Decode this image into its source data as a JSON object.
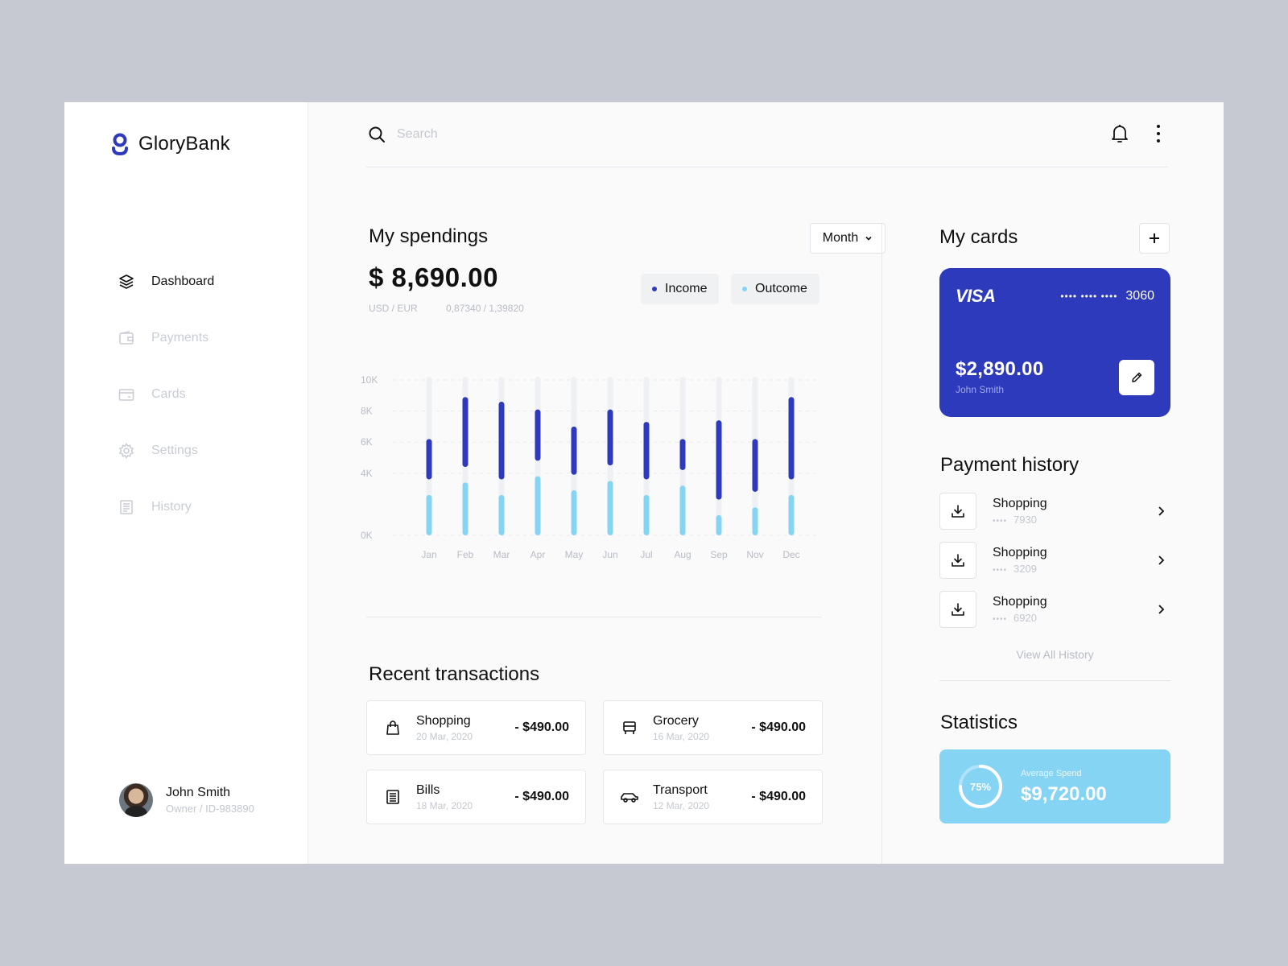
{
  "brand": {
    "name": "GloryBank"
  },
  "colors": {
    "primary": "#2d3abb",
    "accent": "#86d4f4",
    "muted": "#c9ccd4",
    "track": "#eef0f3"
  },
  "sidebar": {
    "items": [
      {
        "label": "Dashboard",
        "icon": "layers-icon",
        "active": true
      },
      {
        "label": "Payments",
        "icon": "wallet-icon",
        "active": false
      },
      {
        "label": "Cards",
        "icon": "card-icon",
        "active": false
      },
      {
        "label": "Settings",
        "icon": "gear-icon",
        "active": false
      },
      {
        "label": "History",
        "icon": "receipt-icon",
        "active": false
      }
    ]
  },
  "user": {
    "name": "John Smith",
    "id": "Owner / ID-983890"
  },
  "search": {
    "placeholder": "Search"
  },
  "spendings": {
    "title": "My spendings",
    "period": "Month",
    "amount": "$ 8,690.00",
    "rate_label": "USD / EUR",
    "rate_value": "0,87340 / 1,39820",
    "legend_income": "Income",
    "legend_outcome": "Outcome"
  },
  "chart_data": {
    "type": "bar",
    "stacked": true,
    "categories": [
      "Jan",
      "Feb",
      "Mar",
      "Apr",
      "May",
      "Jun",
      "Jul",
      "Aug",
      "Sep",
      "Nov",
      "Dec"
    ],
    "y_ticks": [
      "0K",
      "4K",
      "6K",
      "8K",
      "10K"
    ],
    "series": [
      {
        "name": "Outcome",
        "color": "#86d4f4",
        "values": [
          2.6,
          3.4,
          2.6,
          3.8,
          2.9,
          3.5,
          2.6,
          3.2,
          1.3,
          1.8,
          2.6
        ]
      },
      {
        "name": "Income",
        "color": "#2d3abb",
        "values": [
          2.6,
          4.5,
          5.0,
          3.3,
          3.1,
          3.6,
          3.7,
          2.0,
          5.1,
          3.4,
          5.3
        ]
      }
    ],
    "track_max": 10.2,
    "grid": true
  },
  "recent": {
    "title": "Recent transactions",
    "items": [
      {
        "name": "Shopping",
        "date": "20 Mar, 2020",
        "amount": "- $490.00",
        "icon": "shopping-bag-icon"
      },
      {
        "name": "Grocery",
        "date": "16 Mar, 2020",
        "amount": "- $490.00",
        "icon": "grocery-cart-icon"
      },
      {
        "name": "Bills",
        "date": "18 Mar, 2020",
        "amount": "- $490.00",
        "icon": "bill-icon"
      },
      {
        "name": "Transport",
        "date": "12 Mar, 2020",
        "amount": "- $490.00",
        "icon": "car-icon"
      }
    ]
  },
  "cards": {
    "title": "My cards",
    "card": {
      "brand": "VISA",
      "masked": "•••• •••• ••••",
      "last4": "3060",
      "balance": "$2,890.00",
      "holder": "John Smith"
    }
  },
  "history": {
    "title": "Payment history",
    "items": [
      {
        "name": "Shopping",
        "dots": "••••",
        "num": "7930"
      },
      {
        "name": "Shopping",
        "dots": "••••",
        "num": "3209"
      },
      {
        "name": "Shopping",
        "dots": "••••",
        "num": "6920"
      }
    ],
    "view_all": "View All History"
  },
  "statistics": {
    "title": "Statistics",
    "percent_label": "75%",
    "percent": 0.75,
    "avg_label": "Average Spend",
    "avg_value": "$9,720.00"
  }
}
